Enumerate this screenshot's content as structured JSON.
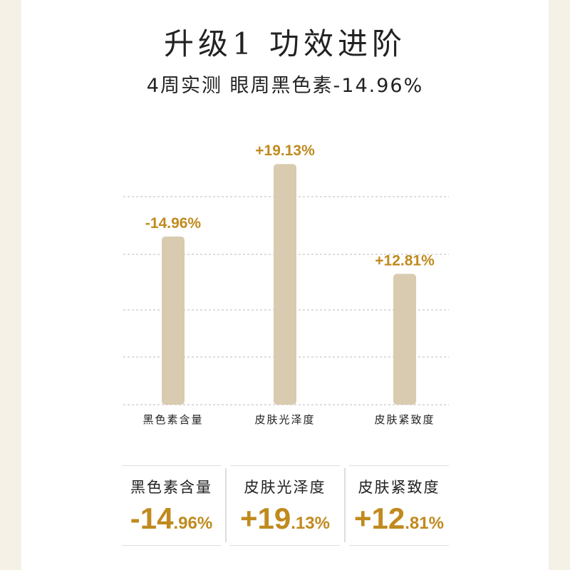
{
  "header": {
    "title": "升级1  功效进阶",
    "subtitle": "4周实测 眼周黑色素-14.96%"
  },
  "chart_data": {
    "type": "bar",
    "categories": [
      "黑色素含量",
      "皮肤光泽度",
      "皮肤紧致度"
    ],
    "values": [
      -14.96,
      19.13,
      12.81
    ],
    "data_labels": [
      "-14.96%",
      "+19.13%",
      "+12.81%"
    ],
    "grid": true,
    "bar_color": "#d9cbaf",
    "label_color": "#c08a1e"
  },
  "cards": [
    {
      "label": "黑色素含量",
      "big": "-14",
      "small": ".96%"
    },
    {
      "label": "皮肤光泽度",
      "big": "+19",
      "small": ".13%"
    },
    {
      "label": "皮肤紧致度",
      "big": "+12",
      "small": ".81%"
    }
  ]
}
